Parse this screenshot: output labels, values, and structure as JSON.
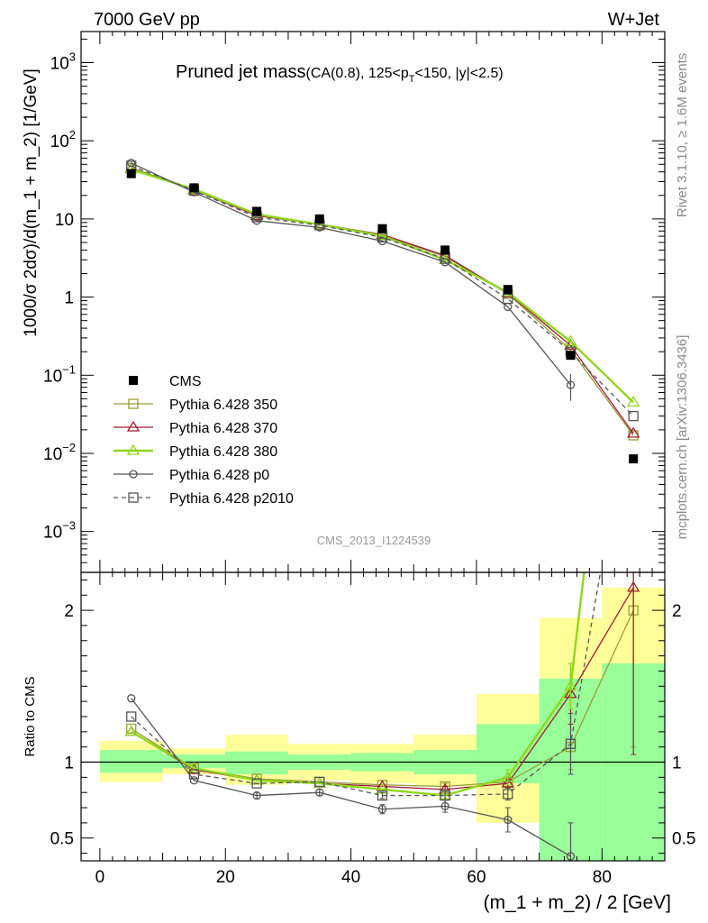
{
  "header": {
    "left": "7000 GeV pp",
    "right": "W+Jet"
  },
  "side_labels": {
    "rivet": "Rivet 3.1.10, ≥ 1.6M events",
    "mcplots": "mcplots.cern.ch [arXiv:1306.3436]"
  },
  "chart_data": {
    "type": "line",
    "title_main": "Pruned jet mass",
    "title_sub": "(CA(0.8), 125<p",
    "title_sub_sub": "T",
    "title_sub_tail": "<150, |y|<2.5)",
    "ylabel": "1000/σ 2dσ)/d(m_1 + m_2) [1/GeV]",
    "xlabel": "(m_1 + m_2) / 2 [GeV]",
    "ratio_ylabel": "Ratio to CMS",
    "watermark": "CMS_2013_I1224539",
    "xlim": [
      -3,
      90
    ],
    "ylim_log": [
      0.0003,
      2500
    ],
    "ratio_ylim": [
      0.35,
      2.25
    ],
    "x_ticks": [
      "0",
      "20",
      "40",
      "60",
      "80"
    ],
    "x_tick_values": [
      0,
      20,
      40,
      60,
      80
    ],
    "y_ticks": [
      {
        "value": 1000,
        "base": "10",
        "exp": "3"
      },
      {
        "value": 100,
        "base": "10",
        "exp": "2"
      },
      {
        "value": 10,
        "base": "10",
        "exp": ""
      },
      {
        "value": 1,
        "base": "1",
        "exp": ""
      },
      {
        "value": 0.1,
        "base": "10",
        "exp": "−1"
      },
      {
        "value": 0.01,
        "base": "10",
        "exp": "−2"
      },
      {
        "value": 0.001,
        "base": "10",
        "exp": "−3"
      }
    ],
    "ratio_ticks": [
      {
        "value": 2,
        "label": "2"
      },
      {
        "value": 1,
        "label": "1"
      },
      {
        "value": 0.5,
        "label": "0.5"
      }
    ],
    "x": [
      5,
      15,
      25,
      35,
      45,
      55,
      65,
      75,
      85
    ],
    "bin_edges": [
      0,
      10,
      20,
      30,
      40,
      50,
      60,
      70,
      80,
      90
    ],
    "data": {
      "name": "CMS",
      "values": [
        38,
        25,
        12.5,
        10,
        7.5,
        4,
        1.25,
        0.18,
        0.0085
      ],
      "band_inner": [
        [
          0.93,
          1.08
        ],
        [
          0.96,
          1.05
        ],
        [
          0.92,
          1.07
        ],
        [
          0.95,
          1.05
        ],
        [
          0.94,
          1.06
        ],
        [
          0.92,
          1.08
        ],
        [
          0.86,
          1.25
        ],
        [
          0.35,
          1.55
        ],
        [
          0.35,
          1.65
        ]
      ],
      "band_outer": [
        [
          0.87,
          1.14
        ],
        [
          0.92,
          1.09
        ],
        [
          0.85,
          1.18
        ],
        [
          0.88,
          1.12
        ],
        [
          0.86,
          1.12
        ],
        [
          0.84,
          1.18
        ],
        [
          0.6,
          1.45
        ],
        [
          0.52,
          1.95
        ],
        [
          0.35,
          2.15
        ]
      ]
    },
    "series": [
      {
        "name": "Pythia 6.428 350",
        "color": "#9b9b3a",
        "marker": "square",
        "dash": "",
        "values": [
          45,
          24,
          11,
          8.5,
          6.2,
          3.3,
          1.1,
          0.21,
          0.017
        ],
        "ratio": [
          1.22,
          0.96,
          0.89,
          0.87,
          0.85,
          0.84,
          0.87,
          1.1,
          2.0
        ],
        "ratio_err": [
          0,
          0,
          0,
          0,
          0,
          0.02,
          0.03,
          0.15,
          0.9
        ]
      },
      {
        "name": "Pythia 6.428 370",
        "color": "#9b1c2e",
        "marker": "triangle",
        "dash": "",
        "values": [
          44,
          23.5,
          11,
          8.6,
          6.3,
          3.4,
          1.12,
          0.24,
          0.018
        ],
        "ratio": [
          1.2,
          0.95,
          0.88,
          0.86,
          0.84,
          0.82,
          0.86,
          1.45,
          2.15
        ],
        "ratio_err": [
          0,
          0,
          0,
          0,
          0,
          0.02,
          0.03,
          0.2,
          1.1
        ]
      },
      {
        "name": "Pythia 6.428 380",
        "color": "#8fd61e",
        "marker": "triangle",
        "dash": "",
        "values": [
          43,
          24,
          11.5,
          8.5,
          6.1,
          3.0,
          1.15,
          0.27,
          0.045
        ],
        "ratio": [
          1.2,
          0.96,
          0.88,
          0.86,
          0.82,
          0.78,
          0.9,
          1.5,
          5.0
        ],
        "ratio_err": [
          0,
          0,
          0,
          0,
          0,
          0.02,
          0.05,
          0.15,
          0
        ]
      },
      {
        "name": "Pythia 6.428 p0",
        "color": "#555555",
        "marker": "circle",
        "dash": "",
        "values": [
          52,
          22,
          9.5,
          7.8,
          5.2,
          2.8,
          0.75,
          0.075,
          0.0
        ],
        "ratio": [
          1.42,
          0.88,
          0.78,
          0.8,
          0.69,
          0.71,
          0.62,
          0.38,
          null
        ],
        "ratio_err": [
          0,
          0,
          0.02,
          0.02,
          0.03,
          0.04,
          0.08,
          0.22,
          0
        ],
        "err_main": [
          0,
          0,
          0,
          0,
          0,
          0,
          0,
          0.028,
          0
        ]
      },
      {
        "name": "Pythia 6.428 p2010",
        "color": "#555555",
        "marker": "square",
        "dash": "5,4",
        "values": [
          48,
          23,
          10.5,
          8.3,
          5.8,
          3.1,
          0.95,
          0.2,
          0.03
        ],
        "ratio": [
          1.3,
          0.92,
          0.86,
          0.87,
          0.78,
          0.78,
          0.79,
          1.12,
          3.5
        ],
        "ratio_err": [
          0,
          0,
          0,
          0,
          0.02,
          0.03,
          0.04,
          0.2,
          0
        ]
      }
    ]
  }
}
